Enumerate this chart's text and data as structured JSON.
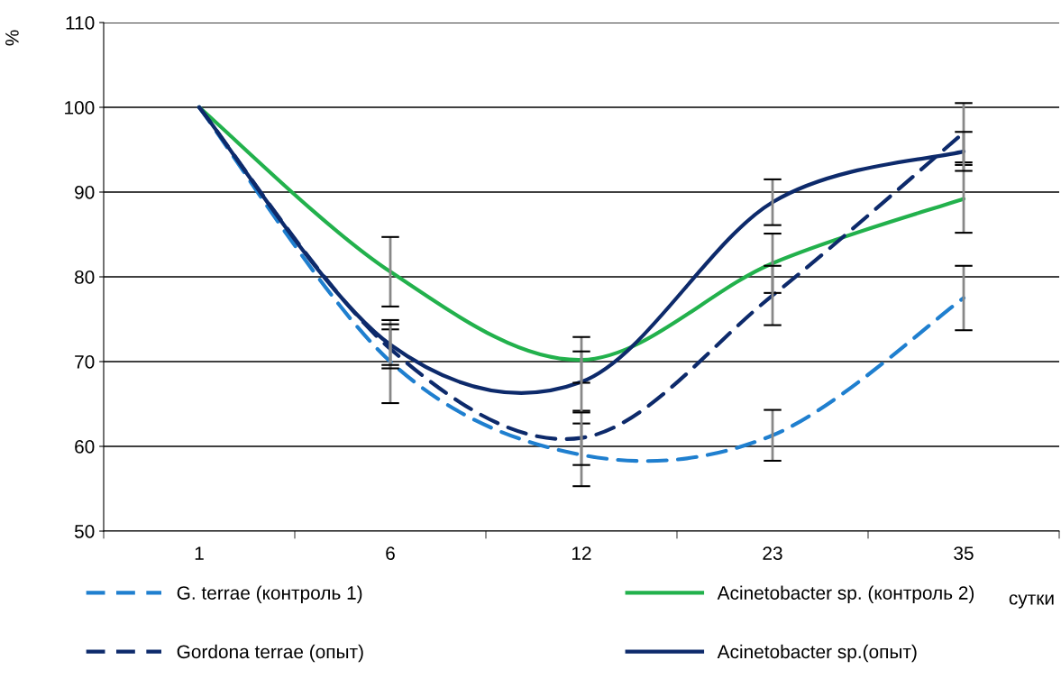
{
  "chart_data": {
    "type": "line",
    "ylabel": "%",
    "xlabel": "сутки",
    "categories": [
      "1",
      "6",
      "12",
      "23",
      "35"
    ],
    "ylim": [
      50,
      110
    ],
    "yticks": [
      50,
      60,
      70,
      80,
      90,
      100,
      110
    ],
    "grid": "y",
    "legend": "bottom",
    "marker": "none",
    "series": [
      {
        "name": "G. terrae (контроль 1)",
        "color": "#1f7fcf",
        "line_style": "dashed",
        "values": [
          100,
          70,
          59,
          61.3,
          77.5
        ],
        "errors": [
          null,
          4.9,
          3.7,
          3,
          3.8
        ]
      },
      {
        "name": "Acinetobacter sp. (контроль 2)",
        "color": "#22b14c",
        "line_style": "solid",
        "values": [
          100,
          80.6,
          70.2,
          81.6,
          89.2
        ],
        "errors": [
          null,
          4.1,
          2.7,
          3.5,
          4
        ]
      },
      {
        "name": "Gordona terrae (опыт)",
        "color": "#0d2a6b",
        "line_style": "dashed",
        "values": [
          100,
          71.5,
          61,
          77.8,
          97
        ],
        "errors": [
          null,
          2.3,
          3.2,
          3.5,
          3.5
        ]
      },
      {
        "name": "Acinetobacter sp.(опыт)",
        "color": "#0d2a6b",
        "line_style": "solid",
        "values": [
          100,
          72,
          67.6,
          88.8,
          94.8
        ],
        "errors": [
          null,
          2.4,
          3.6,
          2.7,
          2.3
        ]
      }
    ]
  }
}
